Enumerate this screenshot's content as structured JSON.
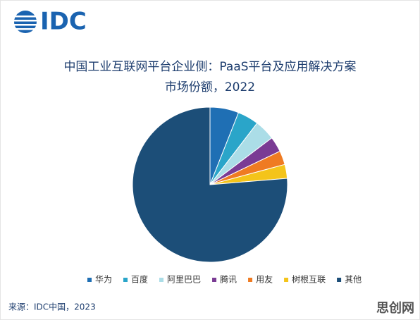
{
  "logo": "IDC",
  "chart_data": {
    "type": "pie",
    "title": [
      "中国工业互联网平台企业侧：PaaS平台及应用解决方案",
      "市场份额，2022"
    ],
    "categories": [
      "华为",
      "百度",
      "阿里巴巴",
      "腾讯",
      "用友",
      "树根互联",
      "其他"
    ],
    "values": [
      6.0,
      4.4,
      4.3,
      3.2,
      2.9,
      2.9,
      76.3
    ],
    "colors": [
      "#1f6fb4",
      "#2aa5c9",
      "#abdde7",
      "#7a3b94",
      "#ef7b22",
      "#f4c41a",
      "#1c4e78"
    ],
    "legend": "bottom"
  },
  "source": "来源：IDC中国，2023",
  "watermark": "思创网"
}
